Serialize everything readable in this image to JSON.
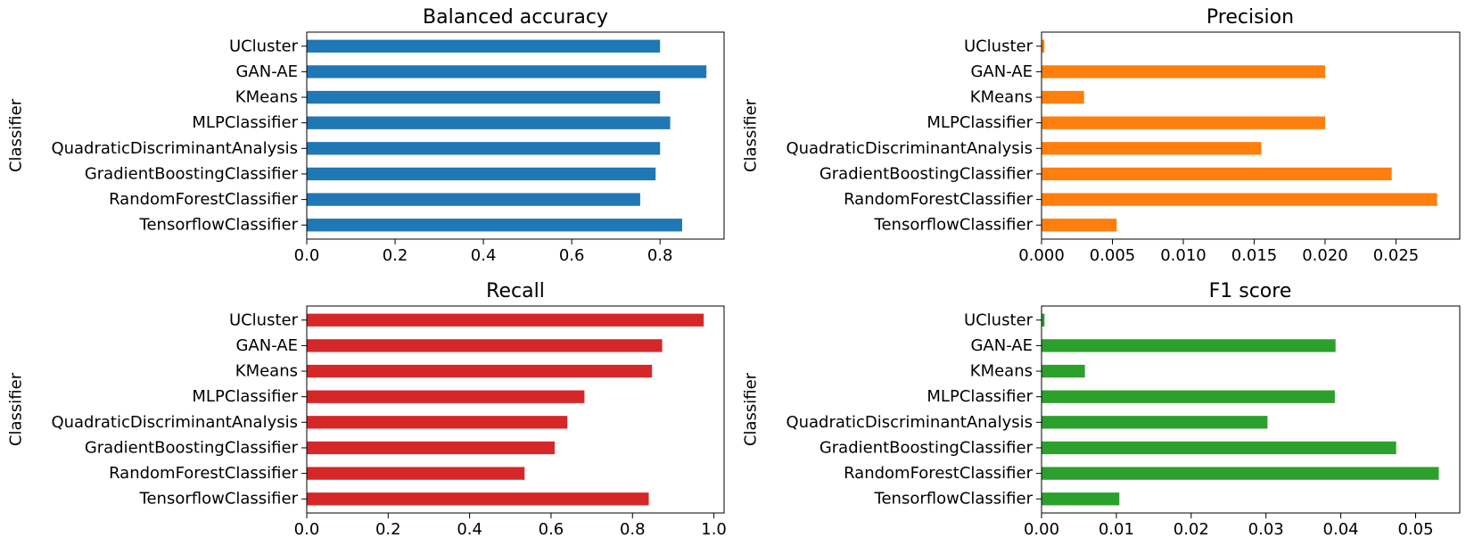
{
  "chart_data": [
    {
      "type": "bar",
      "orientation": "horizontal",
      "title": "Balanced accuracy",
      "ylabel": "Classifier",
      "xlabel": "",
      "color": "#1f77b4",
      "categories": [
        "UCluster",
        "GAN-AE",
        "KMeans",
        "MLPClassifier",
        "QuadraticDiscriminantAnalysis",
        "GradientBoostingClassifier",
        "RandomForestClassifier",
        "TensorflowClassifier"
      ],
      "values": [
        0.8,
        0.905,
        0.8,
        0.823,
        0.8,
        0.79,
        0.755,
        0.85
      ],
      "xlim": [
        0,
        0.945
      ],
      "xticks": [
        0,
        0.2,
        0.4,
        0.6,
        0.8
      ],
      "xtick_labels": [
        "0.0",
        "0.2",
        "0.4",
        "0.6",
        "0.8"
      ],
      "grid": false
    },
    {
      "type": "bar",
      "orientation": "horizontal",
      "title": "Precision",
      "ylabel": "Classifier",
      "xlabel": "",
      "color": "#ff7f0e",
      "categories": [
        "UCluster",
        "GAN-AE",
        "KMeans",
        "MLPClassifier",
        "QuadraticDiscriminantAnalysis",
        "GradientBoostingClassifier",
        "RandomForestClassifier",
        "TensorflowClassifier"
      ],
      "values": [
        0.0002,
        0.02,
        0.003,
        0.02,
        0.0155,
        0.0247,
        0.0279,
        0.0053
      ],
      "xlim": [
        0,
        0.0295
      ],
      "xticks": [
        0,
        0.005,
        0.01,
        0.015,
        0.02,
        0.025
      ],
      "xtick_labels": [
        "0.000",
        "0.005",
        "0.010",
        "0.015",
        "0.020",
        "0.025"
      ],
      "grid": false
    },
    {
      "type": "bar",
      "orientation": "horizontal",
      "title": "Recall",
      "ylabel": "Classifier",
      "xlabel": "",
      "color": "#d62728",
      "categories": [
        "UCluster",
        "GAN-AE",
        "KMeans",
        "MLPClassifier",
        "QuadraticDiscriminantAnalysis",
        "GradientBoostingClassifier",
        "RandomForestClassifier",
        "TensorflowClassifier"
      ],
      "values": [
        0.975,
        0.873,
        0.848,
        0.682,
        0.64,
        0.609,
        0.535,
        0.84
      ],
      "xlim": [
        0,
        1.025
      ],
      "xticks": [
        0,
        0.2,
        0.4,
        0.6,
        0.8,
        1.0
      ],
      "xtick_labels": [
        "0.0",
        "0.2",
        "0.4",
        "0.6",
        "0.8",
        "1.0"
      ],
      "grid": false
    },
    {
      "type": "bar",
      "orientation": "horizontal",
      "title": "F1 score",
      "ylabel": "Classifier",
      "xlabel": "",
      "color": "#2ca02c",
      "categories": [
        "UCluster",
        "GAN-AE",
        "KMeans",
        "MLPClassifier",
        "QuadraticDiscriminantAnalysis",
        "GradientBoostingClassifier",
        "RandomForestClassifier",
        "TensorflowClassifier"
      ],
      "values": [
        0.0004,
        0.0393,
        0.0058,
        0.0392,
        0.0302,
        0.0474,
        0.0531,
        0.0104
      ],
      "xlim": [
        0,
        0.0559
      ],
      "xticks": [
        0,
        0.01,
        0.02,
        0.03,
        0.04,
        0.05
      ],
      "xtick_labels": [
        "0.00",
        "0.01",
        "0.02",
        "0.03",
        "0.04",
        "0.05"
      ],
      "grid": false
    }
  ]
}
